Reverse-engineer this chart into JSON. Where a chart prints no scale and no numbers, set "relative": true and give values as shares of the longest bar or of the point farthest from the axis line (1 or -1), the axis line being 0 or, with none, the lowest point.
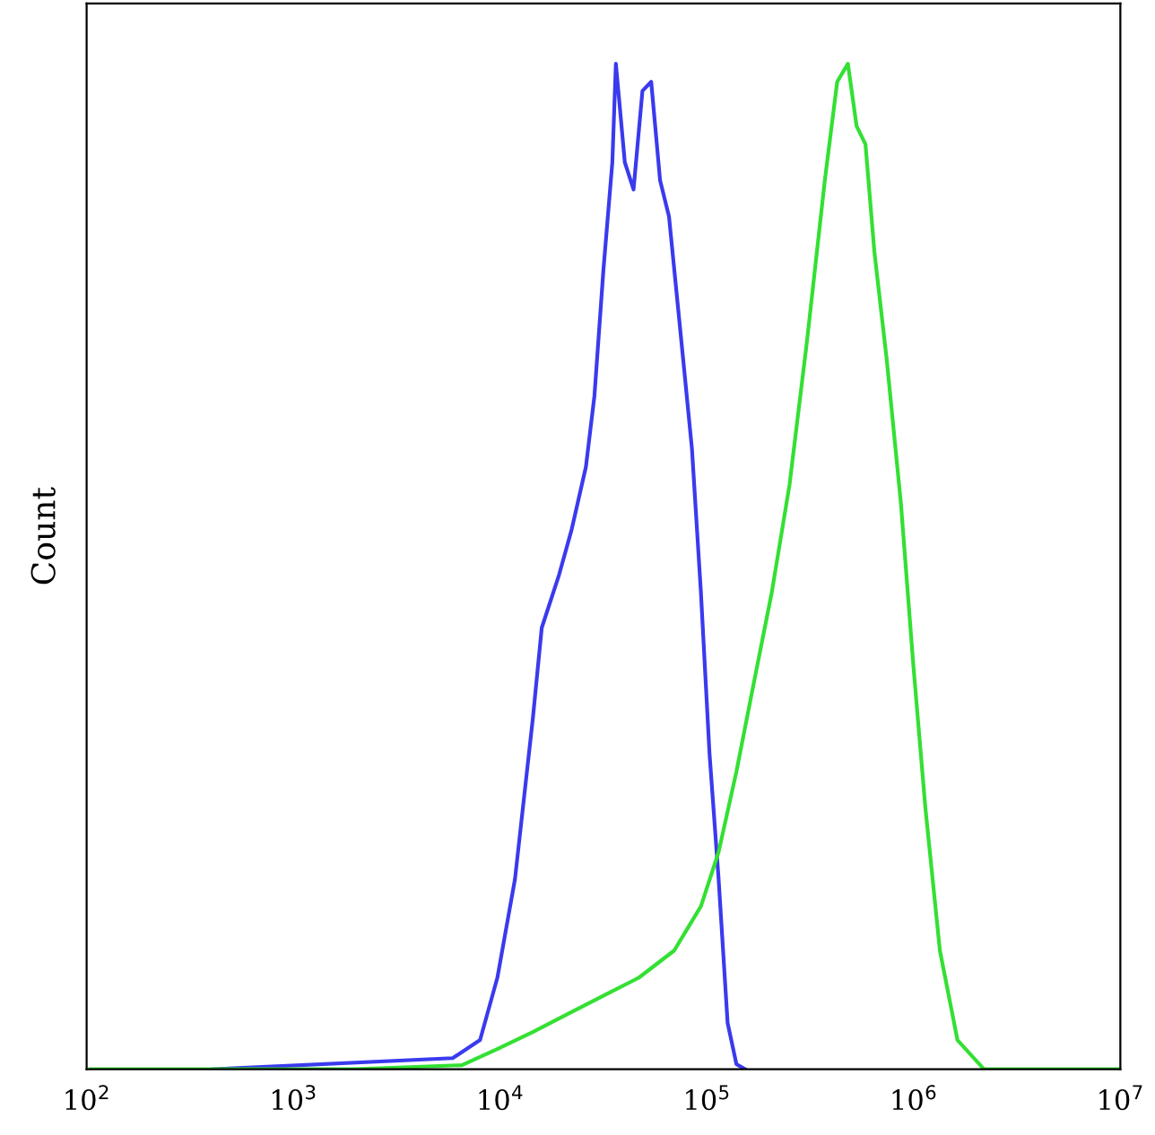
{
  "chart_data": {
    "type": "line",
    "relative": true,
    "log": "x",
    "ylabel": "Count",
    "grid": false,
    "legend": false,
    "xlim": [
      100,
      10000000
    ],
    "xticks": [
      {
        "value": 100,
        "label": "10$^{2}$"
      },
      {
        "value": 1000,
        "label": "10$^{3}$"
      },
      {
        "value": 10000,
        "label": "10$^{4}$"
      },
      {
        "value": 100000,
        "label": "10$^{5}$"
      },
      {
        "value": 1000000,
        "label": "10$^{6}$"
      },
      {
        "value": 10000000,
        "label": "10$^{7}$"
      }
    ],
    "series": [
      {
        "color": "#3a3aee",
        "x": [
          413,
          5900,
          8000,
          9700,
          11800,
          14400,
          15900,
          19300,
          22200,
          26000,
          28600,
          31600,
          34900,
          36300,
          40100,
          44200,
          48800,
          53800,
          59400,
          65600,
          76800,
          84700,
          93600,
          103000,
          114000,
          126000,
          139000,
          153000
        ],
        "values": [
          0,
          0.011,
          0.029,
          0.091,
          0.189,
          0.349,
          0.439,
          0.492,
          0.537,
          0.599,
          0.67,
          0.795,
          0.902,
          1,
          0.902,
          0.875,
          0.973,
          0.982,
          0.884,
          0.848,
          0.706,
          0.617,
          0.474,
          0.314,
          0.189,
          0.046,
          0.005,
          0
        ]
      },
      {
        "color": "#33e033",
        "x": [
          104,
          2000,
          6530,
          9690,
          14400,
          21300,
          31600,
          46900,
          69500,
          93600,
          114000,
          139000,
          169000,
          206000,
          251000,
          305000,
          372000,
          427000,
          481000,
          530000,
          585000,
          646000,
          741000,
          868000,
          996000,
          1140000,
          1340000,
          1630000,
          2190000,
          10000000
        ],
        "values": [
          0,
          0,
          0.004,
          0.02,
          0.037,
          0.055,
          0.073,
          0.091,
          0.118,
          0.162,
          0.216,
          0.296,
          0.385,
          0.474,
          0.581,
          0.724,
          0.884,
          0.982,
          1,
          0.938,
          0.92,
          0.813,
          0.706,
          0.563,
          0.403,
          0.26,
          0.118,
          0.029,
          0,
          0
        ]
      }
    ]
  }
}
